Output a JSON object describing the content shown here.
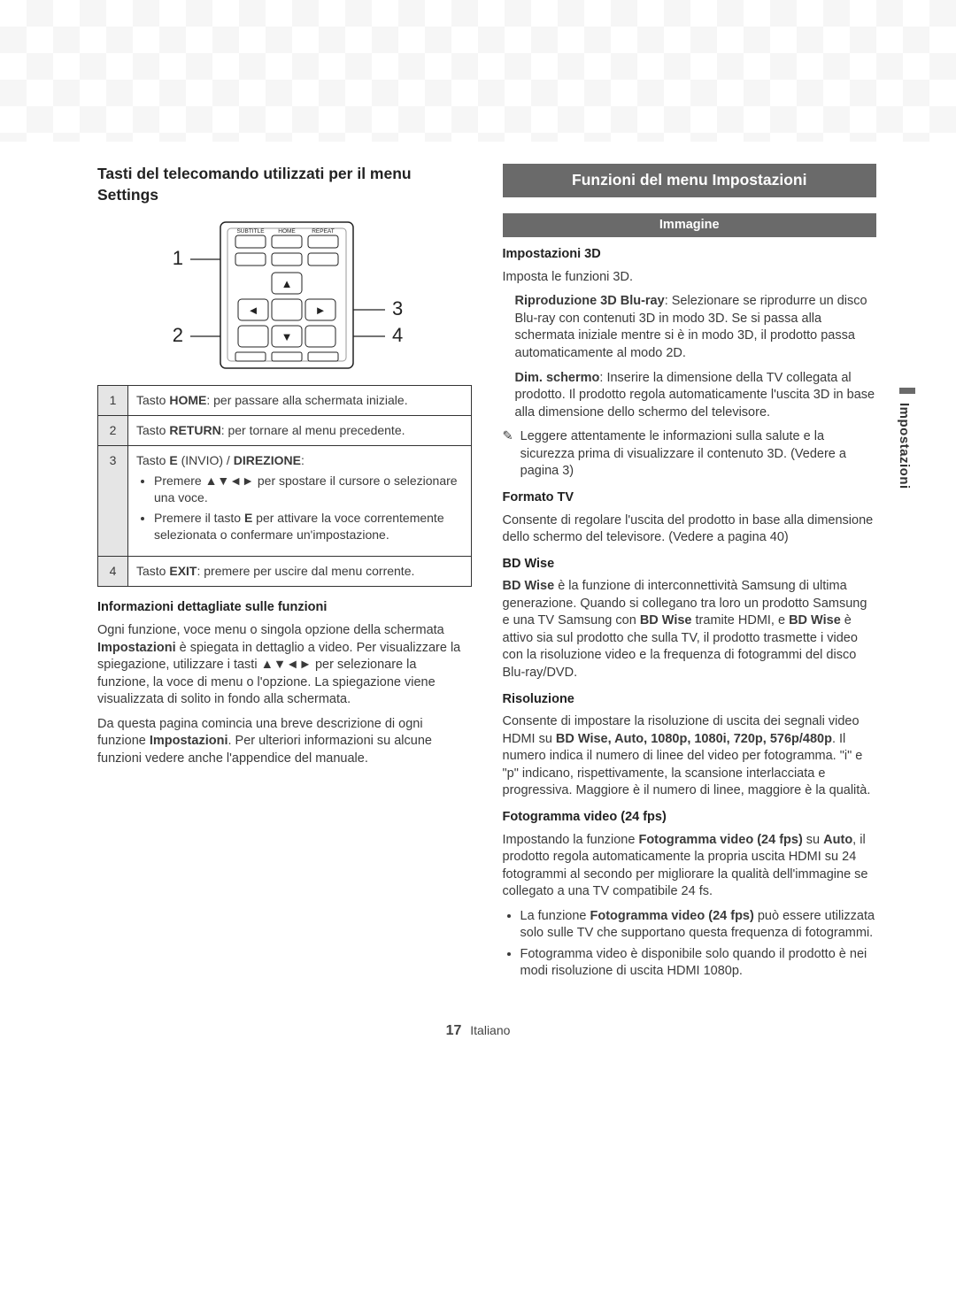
{
  "page": {
    "number": "17",
    "language": "Italiano"
  },
  "sideTab": "Impostazioni",
  "left": {
    "title": "Tasti del telecomando utilizzati per il menu Settings",
    "remote": {
      "topLabels": [
        "SUBTITLE",
        "HOME",
        "REPEAT"
      ],
      "callouts": {
        "c1": "1",
        "c2": "2",
        "c3": "3",
        "c4": "4"
      }
    },
    "table": {
      "rows": [
        {
          "num": "1",
          "html": "Tasto <b>HOME</b>: per passare alla schermata iniziale."
        },
        {
          "num": "2",
          "html": "Tasto <b>RETURN</b>: per tornare al menu precedente."
        },
        {
          "num": "3",
          "html": "Tasto <b>E</b> (INVIO) / <b>DIREZIONE</b>:<ul class='bul'><li>Premere ▲▼◄► per spostare il cursore o selezionare una voce.</li><li>Premere il tasto <b>E</b> per attivare la voce correntemente selezionata o confermare un'impostazione.</li></ul>"
        },
        {
          "num": "4",
          "html": "Tasto <b>EXIT</b>: premere per uscire dal menu corrente."
        }
      ]
    },
    "infoHead": "Informazioni dettagliate sulle funzioni",
    "infoP1": "Ogni funzione, voce menu o singola opzione della schermata <b>Impostazioni</b> è spiegata in dettaglio a video. Per visualizzare la spiegazione, utilizzare i tasti ▲▼◄► per selezionare la funzione, la voce di menu o l'opzione. La spiegazione viene visualizzata di solito in fondo alla schermata.",
    "infoP2": "Da questa pagina comincia una breve descrizione di ogni funzione <b>Impostazioni</b>. Per ulteriori informazioni su alcune funzioni vedere anche l'appendice del manuale."
  },
  "right": {
    "sectionTitle": "Funzioni del menu Impostazioni",
    "immagine": {
      "bar": "Immagine",
      "imp3dHead": "Impostazioni 3D",
      "imp3dIntro": "Imposta le funzioni 3D.",
      "imp3dItems": [
        "<b>Riproduzione 3D Blu-ray</b>: Selezionare se riprodurre un disco Blu-ray con contenuti 3D in modo 3D. Se si passa alla schermata iniziale mentre si è in modo 3D, il prodotto passa automaticamente al modo 2D.",
        "<b>Dim. schermo</b>: Inserire la dimensione della TV collegata al prodotto. Il prodotto regola automaticamente l'uscita 3D in base alla dimensione dello schermo del televisore."
      ],
      "note": "Leggere attentamente le informazioni sulla salute e la sicurezza prima di visualizzare il contenuto 3D. (Vedere a pagina 3)",
      "formatoHead": "Formato TV",
      "formatoBody": "Consente di regolare l'uscita del prodotto in base alla dimensione dello schermo del televisore. (Vedere a pagina 40)",
      "bdwiseHead": "BD Wise",
      "bdwiseBody": "<b>BD Wise</b> è la funzione di interconnettività Samsung di ultima generazione. Quando si collegano tra loro un prodotto Samsung e una TV Samsung con <b>BD Wise</b> tramite HDMI, e <b>BD Wise</b> è attivo sia sul prodotto che sulla TV, il prodotto trasmette i video con la risoluzione video e la frequenza di fotogrammi del disco Blu-ray/DVD.",
      "risHead": "Risoluzione",
      "risBody": "Consente di impostare la risoluzione di uscita dei segnali video HDMI su <b>BD Wise, Auto, 1080p, 1080i, 720p, 576p/480p</b>. Il numero indica il numero di linee del video per fotogramma. \"i\" e \"p\" indicano, rispettivamente, la scansione interlacciata e progressiva. Maggiore è il numero di linee, maggiore è la qualità.",
      "fpsHead": "Fotogramma video (24 fps)",
      "fpsBody": "Impostando la funzione <b>Fotogramma video (24 fps)</b> su <b>Auto</b>, il prodotto regola automaticamente la propria uscita HDMI su 24 fotogrammi al secondo per migliorare la qualità dell'immagine se collegato a una TV compatibile 24 fs.",
      "fpsBullets": [
        "La funzione <b>Fotogramma video (24 fps)</b> può essere utilizzata solo sulle TV che supportano questa frequenza di fotogrammi.",
        "Fotogramma video è disponibile solo quando il prodotto è nei modi risoluzione di uscita HDMI 1080p."
      ]
    }
  },
  "style": {
    "barBg": "#6a6a6a",
    "barFg": "#ffffff",
    "textColor": "#3a3a3a",
    "tableNumBg": "#e5e5e5",
    "border": "#333333"
  }
}
